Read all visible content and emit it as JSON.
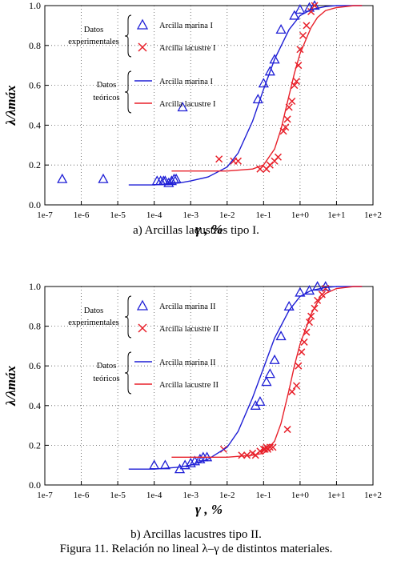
{
  "figure": {
    "caption": "Figura 11. Relación no lineal λ–γ de distintos materiales."
  },
  "chart_data": [
    {
      "type": "scatter",
      "panel_caption": "a) Arcillas lacustres tipo I.",
      "xlabel": "γ , %",
      "ylabel": "λ/λmáx",
      "xscale": "log",
      "xlim": [
        1e-07,
        100
      ],
      "ylim": [
        0,
        1
      ],
      "x_ticks": [
        "1e-7",
        "1e-6",
        "1e-5",
        "1e-4",
        "1e-3",
        "1e-2",
        "1e-1",
        "1e+0",
        "1e+1",
        "1e+2"
      ],
      "y_ticks": [
        "0.0",
        "0.2",
        "0.4",
        "0.6",
        "0.8",
        "1.0"
      ],
      "grid": true,
      "legend": {
        "placement": "top-left",
        "group_experimental": [
          "Datos",
          "experimentales"
        ],
        "group_theoretical": [
          "Datos",
          "teóricos"
        ]
      },
      "series": [
        {
          "name": "Arcilla marina I",
          "kind": "experimental",
          "marker": "triangle",
          "color": "#1f1fd6",
          "x": [
            3e-07,
            4e-06,
            0.00012,
            0.00015,
            0.00018,
            0.0002,
            0.00025,
            0.0003,
            0.00035,
            0.0004,
            0.0006,
            0.07,
            0.1,
            0.15,
            0.2,
            0.3,
            0.7,
            1.0,
            1.8,
            2.5
          ],
          "y": [
            0.13,
            0.13,
            0.12,
            0.12,
            0.12,
            0.12,
            0.11,
            0.12,
            0.13,
            0.13,
            0.49,
            0.53,
            0.61,
            0.67,
            0.73,
            0.88,
            0.95,
            0.98,
            0.99,
            1.0
          ]
        },
        {
          "name": "Arcilla lacustre I",
          "kind": "experimental",
          "marker": "x",
          "color": "#e8202a",
          "x": [
            0.006,
            0.015,
            0.02,
            0.08,
            0.12,
            0.15,
            0.2,
            0.25,
            0.35,
            0.4,
            0.45,
            0.5,
            0.6,
            0.7,
            0.8,
            0.9,
            1.0,
            1.2,
            1.5,
            2.0,
            2.5
          ],
          "y": [
            0.23,
            0.22,
            0.22,
            0.18,
            0.18,
            0.2,
            0.22,
            0.24,
            0.37,
            0.39,
            0.43,
            0.49,
            0.52,
            0.6,
            0.62,
            0.7,
            0.78,
            0.85,
            0.9,
            0.97,
            1.0
          ]
        },
        {
          "name": "Arcilla marina I",
          "kind": "theoretical",
          "marker": "line",
          "color": "#1f1fd6",
          "x": [
            2e-05,
            0.0001,
            0.0005,
            0.001,
            0.003,
            0.01,
            0.02,
            0.05,
            0.1,
            0.2,
            0.5,
            1,
            2,
            5,
            10,
            50
          ],
          "y": [
            0.1,
            0.1,
            0.11,
            0.12,
            0.14,
            0.19,
            0.26,
            0.42,
            0.58,
            0.73,
            0.88,
            0.95,
            0.98,
            0.995,
            1.0,
            1.0
          ]
        },
        {
          "name": "Arcilla lacustre I",
          "kind": "theoretical",
          "marker": "line",
          "color": "#e8202a",
          "x": [
            0.0003,
            0.001,
            0.01,
            0.05,
            0.1,
            0.2,
            0.3,
            0.5,
            0.7,
            1,
            2,
            3,
            5,
            10,
            30,
            50
          ],
          "y": [
            0.17,
            0.17,
            0.17,
            0.18,
            0.2,
            0.28,
            0.38,
            0.55,
            0.66,
            0.76,
            0.89,
            0.94,
            0.975,
            0.99,
            1.0,
            1.0
          ]
        }
      ]
    },
    {
      "type": "scatter",
      "panel_caption": "b) Arcillas lacustres tipo II.",
      "xlabel": "γ , %",
      "ylabel": "λ/λmáx",
      "xscale": "log",
      "xlim": [
        1e-07,
        100
      ],
      "ylim": [
        0,
        1
      ],
      "x_ticks": [
        "1e-7",
        "1e-6",
        "1e-5",
        "1e-4",
        "1e-3",
        "1e-2",
        "1e-1",
        "1e+0",
        "1e+1",
        "1e+2"
      ],
      "y_ticks": [
        "0.0",
        "0.2",
        "0.4",
        "0.6",
        "0.8",
        "1.0"
      ],
      "grid": true,
      "legend": {
        "placement": "top-left",
        "group_experimental": [
          "Datos",
          "experimentales"
        ],
        "group_theoretical": [
          "Datos",
          "teóricos"
        ]
      },
      "series": [
        {
          "name": "Arcilla marina II",
          "kind": "experimental",
          "marker": "triangle",
          "color": "#1f1fd6",
          "x": [
            0.0001,
            0.0002,
            0.0005,
            0.0007,
            0.001,
            0.0013,
            0.0018,
            0.0022,
            0.0028,
            0.06,
            0.08,
            0.12,
            0.15,
            0.2,
            0.3,
            0.5,
            1.0,
            1.8,
            3.0,
            5.0
          ],
          "y": [
            0.1,
            0.1,
            0.08,
            0.1,
            0.11,
            0.12,
            0.13,
            0.14,
            0.14,
            0.4,
            0.42,
            0.52,
            0.56,
            0.63,
            0.75,
            0.9,
            0.97,
            0.98,
            1.0,
            1.0
          ]
        },
        {
          "name": "Arcilla lacustre II",
          "kind": "experimental",
          "marker": "x",
          "color": "#e8202a",
          "x": [
            0.008,
            0.025,
            0.035,
            0.05,
            0.06,
            0.08,
            0.1,
            0.11,
            0.12,
            0.13,
            0.15,
            0.18,
            0.45,
            0.6,
            0.8,
            0.9,
            1.1,
            1.3,
            1.5,
            1.8,
            2.0,
            2.5,
            3.0,
            4.0,
            5.0
          ],
          "y": [
            0.18,
            0.15,
            0.15,
            0.16,
            0.15,
            0.17,
            0.18,
            0.18,
            0.19,
            0.18,
            0.19,
            0.19,
            0.28,
            0.47,
            0.5,
            0.6,
            0.67,
            0.72,
            0.77,
            0.82,
            0.85,
            0.89,
            0.93,
            0.96,
            0.99
          ]
        },
        {
          "name": "Arcilla marina II",
          "kind": "theoretical",
          "marker": "line",
          "color": "#1f1fd6",
          "x": [
            2e-05,
            0.0001,
            0.0005,
            0.001,
            0.003,
            0.01,
            0.02,
            0.05,
            0.1,
            0.2,
            0.5,
            1,
            2,
            5,
            10,
            50
          ],
          "y": [
            0.08,
            0.08,
            0.09,
            0.1,
            0.13,
            0.19,
            0.27,
            0.44,
            0.59,
            0.74,
            0.88,
            0.95,
            0.98,
            0.995,
            1.0,
            1.0
          ]
        },
        {
          "name": "Arcilla lacustre II",
          "kind": "theoretical",
          "marker": "line",
          "color": "#e8202a",
          "x": [
            0.0003,
            0.001,
            0.01,
            0.05,
            0.1,
            0.2,
            0.3,
            0.5,
            0.7,
            1,
            2,
            3,
            5,
            10,
            30,
            50
          ],
          "y": [
            0.14,
            0.14,
            0.14,
            0.15,
            0.16,
            0.22,
            0.31,
            0.48,
            0.6,
            0.71,
            0.86,
            0.92,
            0.965,
            0.99,
            1.0,
            1.0
          ]
        }
      ]
    }
  ]
}
